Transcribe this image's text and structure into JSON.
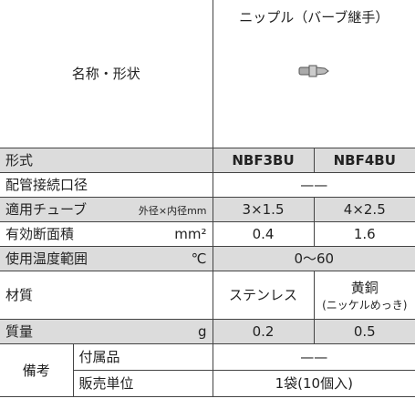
{
  "header": {
    "label": "名称・形状",
    "product": "ニップル（バーブ継手）"
  },
  "rows": [
    {
      "label": "形式",
      "values": [
        "NBF3BU",
        "NBF4BU"
      ]
    },
    {
      "label": "配管接続口径",
      "values": [
        "——"
      ]
    },
    {
      "label": "適用チューブ",
      "unit": "外径×内径mm",
      "values": [
        "3×1.5",
        "4×2.5"
      ]
    },
    {
      "label": "有効断面積",
      "unit": "mm²",
      "values": [
        "0.4",
        "1.6"
      ]
    },
    {
      "label": "使用温度範囲",
      "unit": "℃",
      "values": [
        "0〜60"
      ]
    },
    {
      "label": "材質",
      "values": [
        "ステンレス",
        "黄銅"
      ],
      "note": "(ニッケルめっき)"
    },
    {
      "label": "質量",
      "unit": "g",
      "values": [
        "0.2",
        "0.5"
      ]
    }
  ],
  "remarks": {
    "label": "備考",
    "items": [
      {
        "label": "付属品",
        "value": "——"
      },
      {
        "label": "販売単位",
        "value": "1袋(10個入)"
      }
    ]
  }
}
